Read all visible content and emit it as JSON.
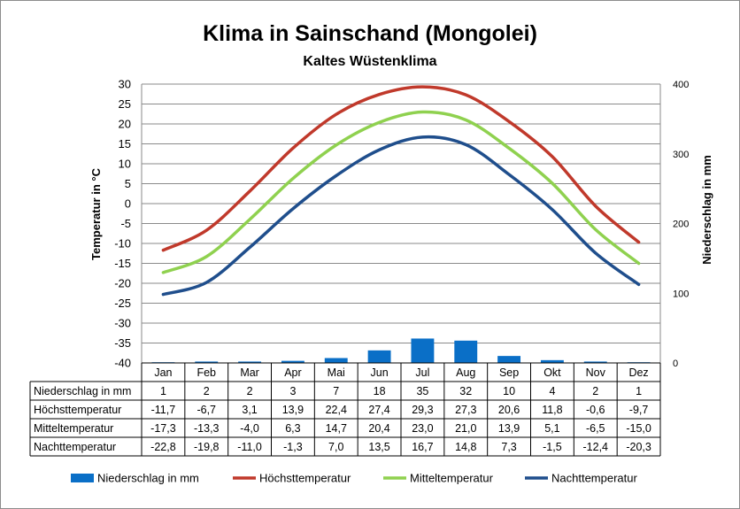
{
  "title": "Klima in Sainschand (Mongolei)",
  "subtitle": "Kaltes Wüstenklima",
  "chart_data": {
    "type": "line",
    "categories": [
      "Jan",
      "Feb",
      "Mar",
      "Apr",
      "Mai",
      "Jun",
      "Jul",
      "Aug",
      "Sep",
      "Okt",
      "Nov",
      "Dez"
    ],
    "ylabel": "Temperatur in °C",
    "y2label": "Niederschlag in mm",
    "ylim": [
      -40,
      30
    ],
    "y2lim": [
      0,
      400
    ],
    "yticks": [
      30,
      25,
      20,
      15,
      10,
      5,
      0,
      -5,
      -10,
      -15,
      -20,
      -25,
      -30,
      -35,
      -40
    ],
    "y2ticks": [
      400,
      300,
      200,
      100,
      0
    ],
    "grid": true,
    "legend_position": "bottom",
    "series": [
      {
        "name": "Niederschlag in mm",
        "type": "bar",
        "axis": "right",
        "color": "#0a6fc7",
        "values": [
          1,
          2,
          2,
          3,
          7,
          18,
          35,
          32,
          10,
          4,
          2,
          1
        ],
        "labels": [
          "1",
          "2",
          "2",
          "3",
          "7",
          "18",
          "35",
          "32",
          "10",
          "4",
          "2",
          "1"
        ]
      },
      {
        "name": "Höchsttemperatur",
        "type": "line",
        "axis": "left",
        "color": "#c0392b",
        "values": [
          -11.7,
          -6.7,
          3.1,
          13.9,
          22.4,
          27.4,
          29.3,
          27.3,
          20.6,
          11.8,
          -0.6,
          -9.7
        ],
        "labels": [
          "-11,7",
          "-6,7",
          "3,1",
          "13,9",
          "22,4",
          "27,4",
          "29,3",
          "27,3",
          "20,6",
          "11,8",
          "-0,6",
          "-9,7"
        ]
      },
      {
        "name": "Mitteltemperatur",
        "type": "line",
        "axis": "left",
        "color": "#8fd14f",
        "values": [
          -17.3,
          -13.3,
          -4.0,
          6.3,
          14.7,
          20.4,
          23.0,
          21.0,
          13.9,
          5.1,
          -6.5,
          -15.0
        ],
        "labels": [
          "-17,3",
          "-13,3",
          "-4,0",
          "6,3",
          "14,7",
          "20,4",
          "23,0",
          "21,0",
          "13,9",
          "5,1",
          "-6,5",
          "-15,0"
        ]
      },
      {
        "name": "Nachttemperatur",
        "type": "line",
        "axis": "left",
        "color": "#1f4e8c",
        "values": [
          -22.8,
          -19.8,
          -11.0,
          -1.3,
          7.0,
          13.5,
          16.7,
          14.8,
          7.3,
          -1.5,
          -12.4,
          -20.3
        ],
        "labels": [
          "-22,8",
          "-19,8",
          "-11,0",
          "-1,3",
          "7,0",
          "13,5",
          "16,7",
          "14,8",
          "7,3",
          "-1,5",
          "-12,4",
          "-20,3"
        ]
      }
    ]
  }
}
